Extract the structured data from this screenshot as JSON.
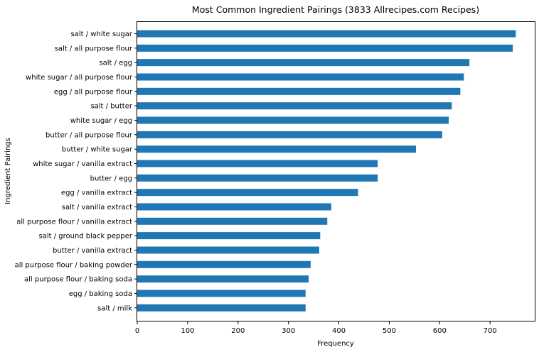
{
  "chart_data": {
    "type": "bar",
    "orientation": "horizontal",
    "title": "Most Common Ingredient Pairings (3833 Allrecipes.com Recipes)",
    "xlabel": "Frequency",
    "ylabel": "Ingredient Pairings",
    "xlim": [
      0,
      790
    ],
    "xticks": [
      0,
      100,
      200,
      300,
      400,
      500,
      600,
      700
    ],
    "grid": false,
    "bar_color": "#1f77b4",
    "categories": [
      "salt / white sugar",
      "salt / all purpose flour",
      "salt / egg",
      "white sugar / all purpose flour",
      "egg / all purpose flour",
      "salt / butter",
      "white sugar / egg",
      "butter / all purpose flour",
      "butter / white sugar",
      "white sugar / vanilla extract",
      "butter / egg",
      "egg / vanilla extract",
      "salt / vanilla extract",
      "all purpose flour / vanilla extract",
      "salt / ground black pepper",
      "butter / vanilla extract",
      "all purpose flour / baking powder",
      "all purpose flour / baking soda",
      "egg / baking soda",
      "salt / milk"
    ],
    "values": [
      751,
      745,
      659,
      648,
      641,
      624,
      618,
      605,
      553,
      477,
      477,
      438,
      385,
      377,
      363,
      361,
      344,
      340,
      334,
      334
    ]
  }
}
